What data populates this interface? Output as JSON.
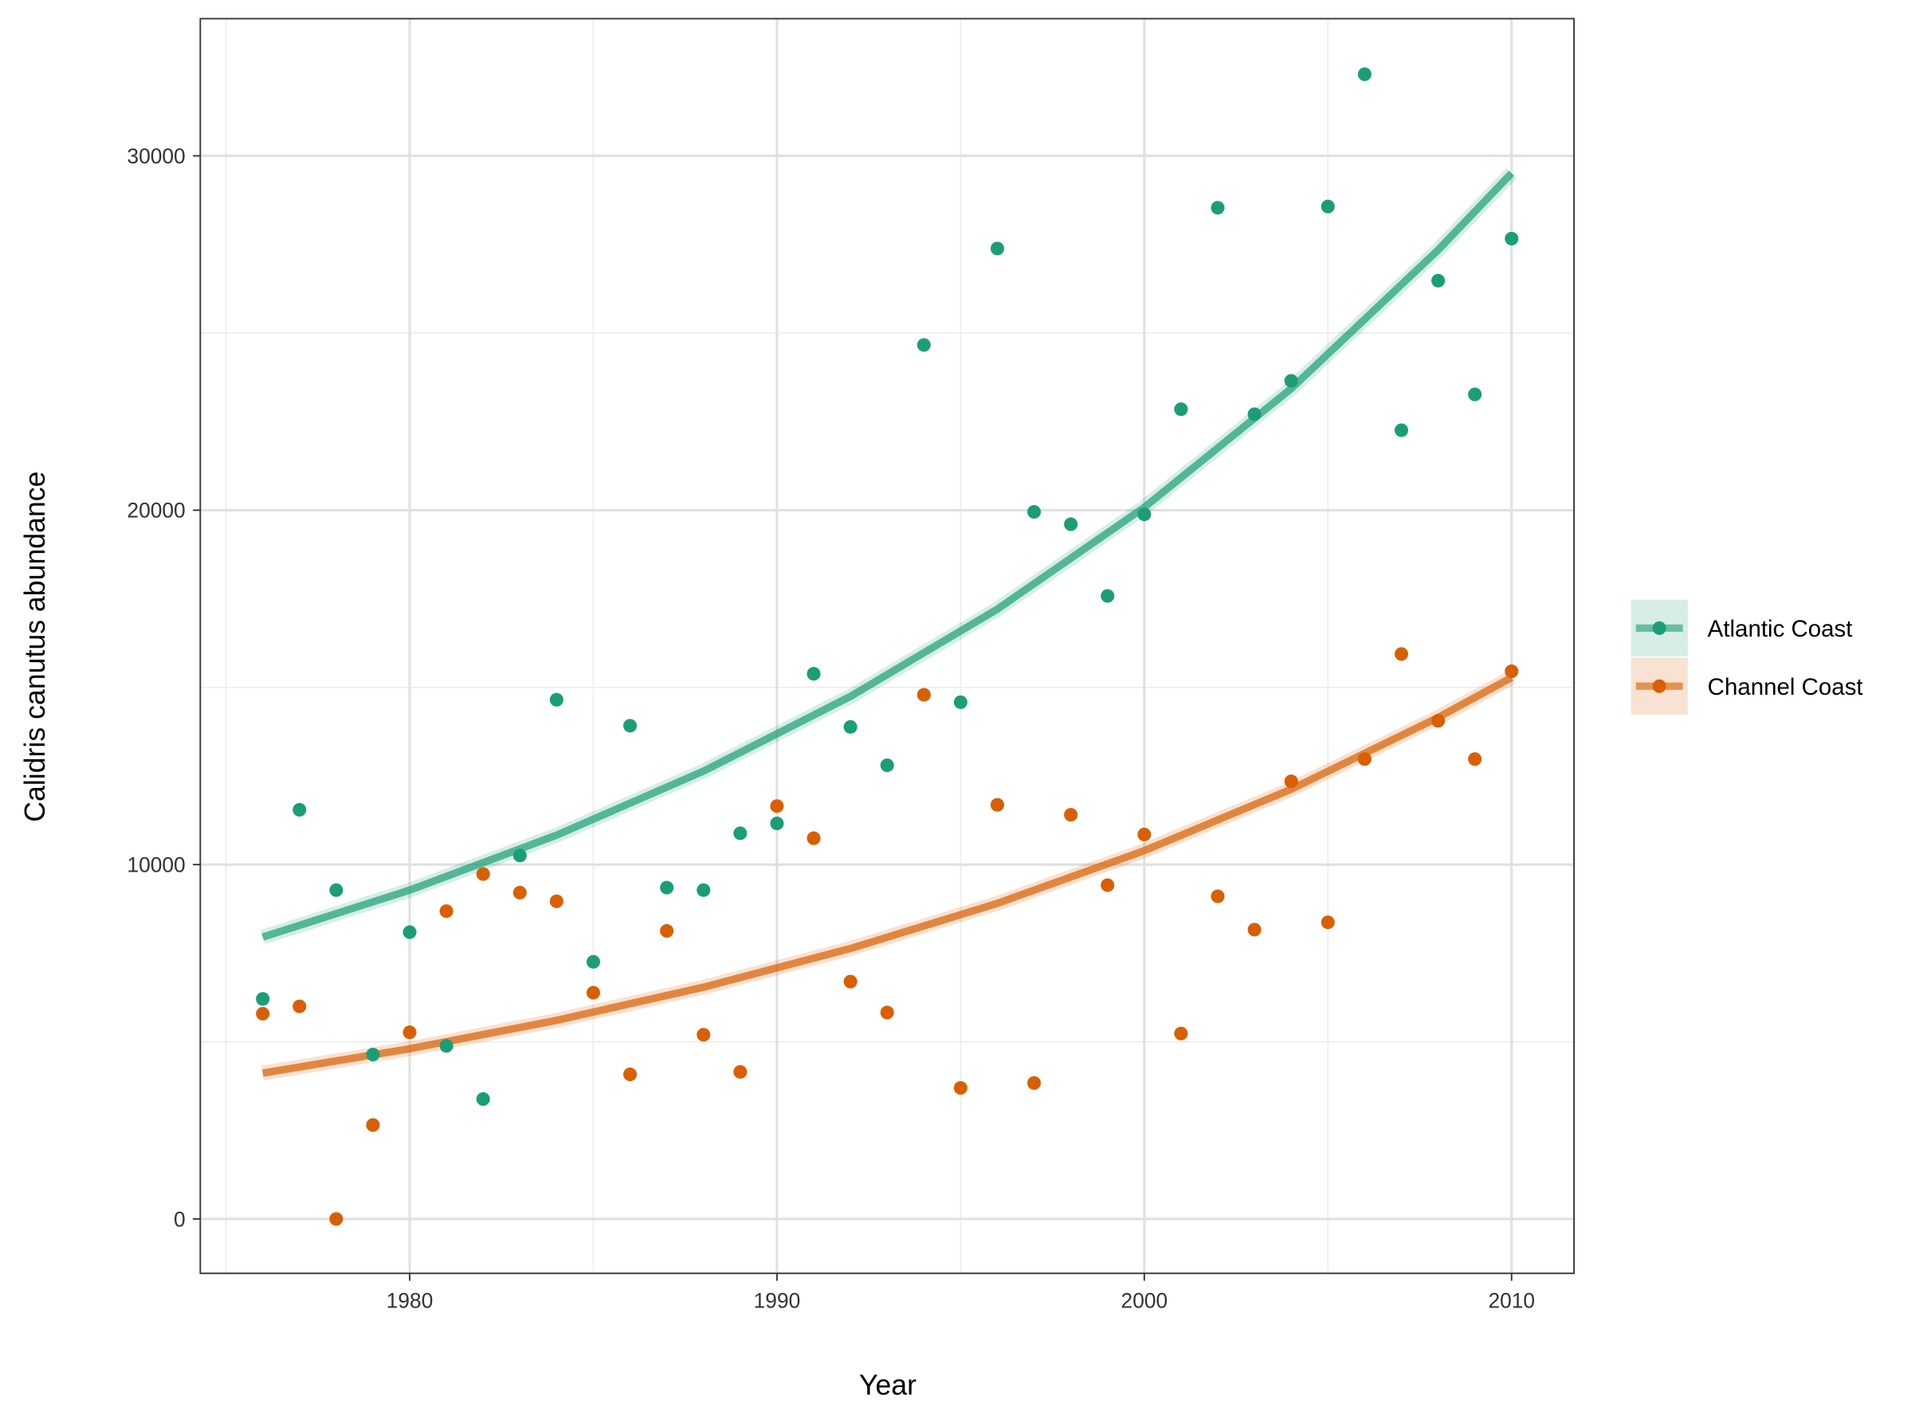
{
  "chart_data": {
    "type": "scatter",
    "x_label": "Year",
    "y_label": "Calidris canutus abundance",
    "x": [
      1976,
      1977,
      1978,
      1979,
      1980,
      1981,
      1982,
      1983,
      1984,
      1985,
      1986,
      1987,
      1988,
      1989,
      1990,
      1991,
      1992,
      1993,
      1994,
      1995,
      1996,
      1997,
      1998,
      1999,
      2000,
      2001,
      2002,
      2003,
      2004,
      2005,
      2006,
      2007,
      2008,
      2009,
      2010
    ],
    "fit_x": [
      1976,
      1980,
      1984,
      1988,
      1992,
      1996,
      2000,
      2004,
      2008,
      2010
    ],
    "series": [
      {
        "name": "Atlantic Coast",
        "color": "#1b9e77",
        "values": [
          6209,
          11546,
          9279,
          4640,
          8093,
          4884,
          3384,
          10256,
          14651,
          7256,
          13919,
          9349,
          9279,
          10884,
          11163,
          15384,
          13884,
          12802,
          24663,
          14581,
          27384,
          19953,
          19605,
          17581,
          19884,
          22849,
          28535,
          22709,
          23651,
          28570,
          32302,
          22256,
          26477,
          23267,
          27663
        ],
        "fit": [
          7953,
          9280,
          10830,
          12637,
          14746,
          17208,
          20080,
          23432,
          27343,
          29512
        ]
      },
      {
        "name": "Channel Coast",
        "color": "#d95f02",
        "values": [
          5791,
          6000,
          0,
          2651,
          5267,
          8686,
          9733,
          9209,
          8965,
          6384,
          4081,
          8128,
          5198,
          4151,
          11651,
          10744,
          6698,
          5826,
          14791,
          3698,
          11686,
          3837,
          11407,
          9419,
          10849,
          5233,
          9105,
          8163,
          12349,
          8372,
          12977,
          15942,
          14058,
          12977,
          15454
        ],
        "fit": [
          4116,
          4803,
          5605,
          6540,
          7632,
          8906,
          10393,
          12127,
          14151,
          15279
        ]
      }
    ],
    "xlim": [
      1974.3,
      2011.7
    ],
    "ylim": [
      -1535,
      33870
    ],
    "xticks": [
      1980,
      1990,
      2000,
      2010
    ],
    "xminor": [
      1975,
      1985,
      1995,
      2005
    ],
    "yticks": [
      0,
      10000,
      20000,
      30000
    ],
    "yminor": [
      5000,
      15000,
      25000
    ],
    "grid": true,
    "legend": "right"
  }
}
